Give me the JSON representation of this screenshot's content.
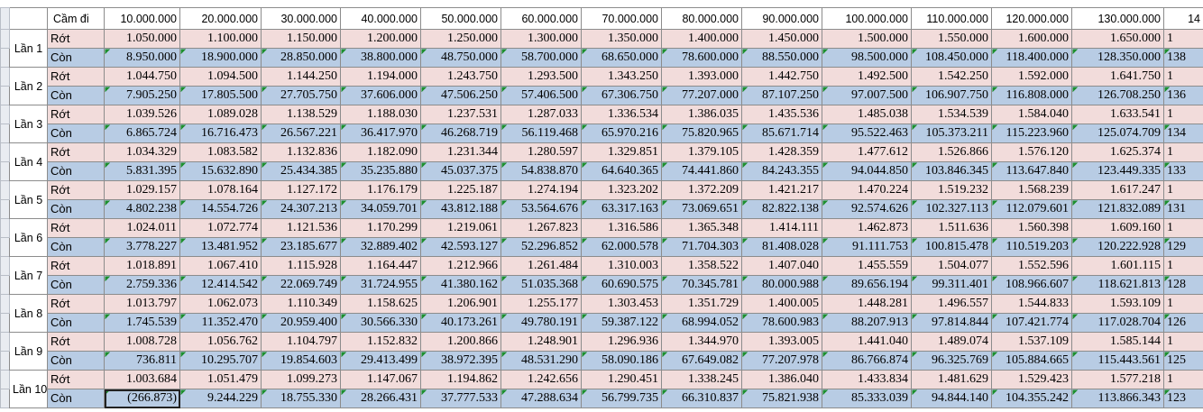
{
  "table": {
    "corner": "Cầm đi",
    "columns": [
      "10.000.000",
      "20.000.000",
      "30.000.000",
      "40.000.000",
      "50.000.000",
      "60.000.000",
      "70.000.000",
      "80.000.000",
      "90.000.000",
      "100.000.000",
      "110.000.000",
      "120.000.000",
      "130.000.000",
      "14"
    ],
    "groups": [
      {
        "label": "Lần 1",
        "rows": [
          {
            "label": "Rớt",
            "cells": [
              "1.050.000",
              "1.100.000",
              "1.150.000",
              "1.200.000",
              "1.250.000",
              "1.300.000",
              "1.350.000",
              "1.400.000",
              "1.450.000",
              "1.500.000",
              "1.550.000",
              "1.600.000",
              "1.650.000",
              "1"
            ]
          },
          {
            "label": "Còn",
            "cells": [
              "8.950.000",
              "18.900.000",
              "28.850.000",
              "38.800.000",
              "48.750.000",
              "58.700.000",
              "68.650.000",
              "78.600.000",
              "88.550.000",
              "98.500.000",
              "108.450.000",
              "118.400.000",
              "128.350.000",
              "138"
            ]
          }
        ]
      },
      {
        "label": "Lần 2",
        "rows": [
          {
            "label": "Rớt",
            "cells": [
              "1.044.750",
              "1.094.500",
              "1.144.250",
              "1.194.000",
              "1.243.750",
              "1.293.500",
              "1.343.250",
              "1.393.000",
              "1.442.750",
              "1.492.500",
              "1.542.250",
              "1.592.000",
              "1.641.750",
              "1"
            ]
          },
          {
            "label": "Còn",
            "cells": [
              "7.905.250",
              "17.805.500",
              "27.705.750",
              "37.606.000",
              "47.506.250",
              "57.406.500",
              "67.306.750",
              "77.207.000",
              "87.107.250",
              "97.007.500",
              "106.907.750",
              "116.808.000",
              "126.708.250",
              "136"
            ]
          }
        ]
      },
      {
        "label": "Lần 3",
        "rows": [
          {
            "label": "Rớt",
            "cells": [
              "1.039.526",
              "1.089.028",
              "1.138.529",
              "1.188.030",
              "1.237.531",
              "1.287.033",
              "1.336.534",
              "1.386.035",
              "1.435.536",
              "1.485.038",
              "1.534.539",
              "1.584.040",
              "1.633.541",
              "1"
            ]
          },
          {
            "label": "Còn",
            "cells": [
              "6.865.724",
              "16.716.473",
              "26.567.221",
              "36.417.970",
              "46.268.719",
              "56.119.468",
              "65.970.216",
              "75.820.965",
              "85.671.714",
              "95.522.463",
              "105.373.211",
              "115.223.960",
              "125.074.709",
              "134"
            ]
          }
        ]
      },
      {
        "label": "Lần 4",
        "rows": [
          {
            "label": "Rớt",
            "cells": [
              "1.034.329",
              "1.083.582",
              "1.132.836",
              "1.182.090",
              "1.231.344",
              "1.280.597",
              "1.329.851",
              "1.379.105",
              "1.428.359",
              "1.477.612",
              "1.526.866",
              "1.576.120",
              "1.625.374",
              "1"
            ]
          },
          {
            "label": "Còn",
            "cells": [
              "5.831.395",
              "15.632.890",
              "25.434.385",
              "35.235.880",
              "45.037.375",
              "54.838.870",
              "64.640.365",
              "74.441.860",
              "84.243.355",
              "94.044.850",
              "103.846.345",
              "113.647.840",
              "123.449.335",
              "133"
            ]
          }
        ]
      },
      {
        "label": "Lần 5",
        "rows": [
          {
            "label": "Rớt",
            "cells": [
              "1.029.157",
              "1.078.164",
              "1.127.172",
              "1.176.179",
              "1.225.187",
              "1.274.194",
              "1.323.202",
              "1.372.209",
              "1.421.217",
              "1.470.224",
              "1.519.232",
              "1.568.239",
              "1.617.247",
              "1"
            ]
          },
          {
            "label": "Còn",
            "cells": [
              "4.802.238",
              "14.554.726",
              "24.307.213",
              "34.059.701",
              "43.812.188",
              "53.564.676",
              "63.317.163",
              "73.069.651",
              "82.822.138",
              "92.574.626",
              "102.327.113",
              "112.079.601",
              "121.832.089",
              "131"
            ]
          }
        ]
      },
      {
        "label": "Lần 6",
        "rows": [
          {
            "label": "Rớt",
            "cells": [
              "1.024.011",
              "1.072.774",
              "1.121.536",
              "1.170.299",
              "1.219.061",
              "1.267.823",
              "1.316.586",
              "1.365.348",
              "1.414.111",
              "1.462.873",
              "1.511.636",
              "1.560.398",
              "1.609.160",
              "1"
            ]
          },
          {
            "label": "Còn",
            "cells": [
              "3.778.227",
              "13.481.952",
              "23.185.677",
              "32.889.402",
              "42.593.127",
              "52.296.852",
              "62.000.578",
              "71.704.303",
              "81.408.028",
              "91.111.753",
              "100.815.478",
              "110.519.203",
              "120.222.928",
              "129"
            ]
          }
        ]
      },
      {
        "label": "Lần 7",
        "rows": [
          {
            "label": "Rớt",
            "cells": [
              "1.018.891",
              "1.067.410",
              "1.115.928",
              "1.164.447",
              "1.212.966",
              "1.261.484",
              "1.310.003",
              "1.358.522",
              "1.407.040",
              "1.455.559",
              "1.504.077",
              "1.552.596",
              "1.601.115",
              "1"
            ]
          },
          {
            "label": "Còn",
            "cells": [
              "2.759.336",
              "12.414.542",
              "22.069.749",
              "31.724.955",
              "41.380.162",
              "51.035.368",
              "60.690.575",
              "70.345.781",
              "80.000.988",
              "89.656.194",
              "99.311.401",
              "108.966.607",
              "118.621.813",
              "128"
            ]
          }
        ]
      },
      {
        "label": "Lần 8",
        "rows": [
          {
            "label": "Rớt",
            "cells": [
              "1.013.797",
              "1.062.073",
              "1.110.349",
              "1.158.625",
              "1.206.901",
              "1.255.177",
              "1.303.453",
              "1.351.729",
              "1.400.005",
              "1.448.281",
              "1.496.557",
              "1.544.833",
              "1.593.109",
              "1"
            ]
          },
          {
            "label": "Còn",
            "cells": [
              "1.745.539",
              "11.352.470",
              "20.959.400",
              "30.566.330",
              "40.173.261",
              "49.780.191",
              "59.387.122",
              "68.994.052",
              "78.600.983",
              "88.207.913",
              "97.814.844",
              "107.421.774",
              "117.028.704",
              "126"
            ]
          }
        ]
      },
      {
        "label": "Lần 9",
        "rows": [
          {
            "label": "Rớt",
            "cells": [
              "1.008.728",
              "1.056.762",
              "1.104.797",
              "1.152.832",
              "1.200.866",
              "1.248.901",
              "1.296.936",
              "1.344.970",
              "1.393.005",
              "1.441.040",
              "1.489.074",
              "1.537.109",
              "1.585.144",
              "1"
            ]
          },
          {
            "label": "Còn",
            "cells": [
              "736.811",
              "10.295.707",
              "19.854.603",
              "29.413.499",
              "38.972.395",
              "48.531.290",
              "58.090.186",
              "67.649.082",
              "77.207.978",
              "86.766.874",
              "96.325.769",
              "105.884.665",
              "115.443.561",
              "125"
            ]
          }
        ]
      },
      {
        "label": "Lần 10",
        "rows": [
          {
            "label": "Rớt",
            "cells": [
              "1.003.684",
              "1.051.479",
              "1.099.273",
              "1.147.067",
              "1.194.862",
              "1.242.656",
              "1.290.451",
              "1.338.245",
              "1.386.040",
              "1.433.834",
              "1.481.629",
              "1.529.423",
              "1.577.218",
              "1"
            ]
          },
          {
            "label": "Còn",
            "cells": [
              "(266.873)",
              "9.244.229",
              "18.755.330",
              "28.266.431",
              "37.777.533",
              "47.288.634",
              "56.799.735",
              "66.310.837",
              "75.821.938",
              "85.333.039",
              "94.844.140",
              "104.355.242",
              "113.866.343",
              "123"
            ]
          }
        ]
      }
    ]
  }
}
